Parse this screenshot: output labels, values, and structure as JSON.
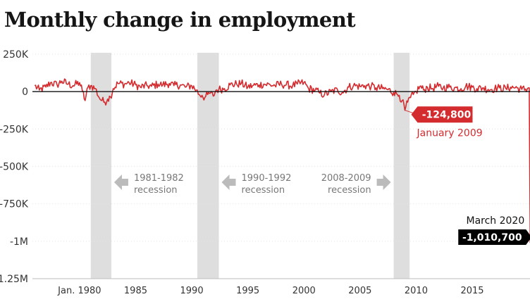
{
  "chart_data": {
    "type": "line",
    "title": "Monthly change in employment",
    "xlabel": "",
    "ylabel": "",
    "x_range": [
      "1976-01",
      "2020-04"
    ],
    "ylim": [
      -1250000,
      250000
    ],
    "yticks": [
      250000,
      0,
      -250000,
      -500000,
      -750000,
      -1000000,
      -1250000
    ],
    "ytick_labels": [
      "250K",
      "0",
      "-250K",
      "-500K",
      "-750K",
      "-1M",
      "-1.25M"
    ],
    "xticks": [
      {
        "x": "1980-01",
        "label": "Jan. 1980"
      },
      {
        "x": "1985-01",
        "label": "1985"
      },
      {
        "x": "1990-01",
        "label": "1990"
      },
      {
        "x": "1995-01",
        "label": "1995"
      },
      {
        "x": "2000-01",
        "label": "2000"
      },
      {
        "x": "2005-01",
        "label": "2005"
      },
      {
        "x": "2010-01",
        "label": "2010"
      },
      {
        "x": "2015-01",
        "label": "2015"
      }
    ],
    "recessions": [
      {
        "start": "1981-01",
        "end": "1982-11",
        "label": [
          "1981-1982",
          "recession"
        ],
        "arrow": "left"
      },
      {
        "start": "1990-07",
        "end": "1992-06",
        "label": [
          "1990-1992",
          "recession"
        ],
        "arrow": "left"
      },
      {
        "start": "2008-01",
        "end": "2009-06",
        "label": [
          "2008-2009",
          "recession"
        ],
        "arrow": "right"
      }
    ],
    "series": [
      {
        "color": "#d42b2f",
        "points": [
          [
            "1976-01",
            40000
          ],
          [
            "1976-06",
            10000
          ],
          [
            "1977-01",
            30000
          ],
          [
            "1977-06",
            60000
          ],
          [
            "1978-01",
            45000
          ],
          [
            "1978-06",
            70000
          ],
          [
            "1979-01",
            50000
          ],
          [
            "1979-06",
            40000
          ],
          [
            "1980-01",
            60000
          ],
          [
            "1980-04",
            5000
          ],
          [
            "1980-07",
            -60000
          ],
          [
            "1980-10",
            30000
          ],
          [
            "1981-01",
            40000
          ],
          [
            "1981-06",
            20000
          ],
          [
            "1981-10",
            -40000
          ],
          [
            "1982-01",
            -60000
          ],
          [
            "1982-04",
            -70000
          ],
          [
            "1982-07",
            -50000
          ],
          [
            "1982-10",
            -35000
          ],
          [
            "1983-01",
            20000
          ],
          [
            "1983-06",
            55000
          ],
          [
            "1984-01",
            50000
          ],
          [
            "1984-06",
            60000
          ],
          [
            "1985-01",
            45000
          ],
          [
            "1985-06",
            30000
          ],
          [
            "1986-01",
            40000
          ],
          [
            "1986-06",
            35000
          ],
          [
            "1987-01",
            50000
          ],
          [
            "1987-06",
            45000
          ],
          [
            "1988-01",
            55000
          ],
          [
            "1988-06",
            40000
          ],
          [
            "1989-01",
            45000
          ],
          [
            "1989-06",
            30000
          ],
          [
            "1990-01",
            40000
          ],
          [
            "1990-06",
            10000
          ],
          [
            "1990-09",
            -20000
          ],
          [
            "1990-12",
            -25000
          ],
          [
            "1991-03",
            -40000
          ],
          [
            "1991-06",
            -20000
          ],
          [
            "1991-09",
            -10000
          ],
          [
            "1991-12",
            -30000
          ],
          [
            "1992-03",
            10000
          ],
          [
            "1992-06",
            15000
          ],
          [
            "1992-12",
            20000
          ],
          [
            "1993-06",
            45000
          ],
          [
            "1994-01",
            50000
          ],
          [
            "1994-06",
            55000
          ],
          [
            "1995-01",
            30000
          ],
          [
            "1995-06",
            40000
          ],
          [
            "1996-01",
            45000
          ],
          [
            "1996-06",
            50000
          ],
          [
            "1997-01",
            45000
          ],
          [
            "1997-06",
            40000
          ],
          [
            "1998-01",
            50000
          ],
          [
            "1998-06",
            45000
          ],
          [
            "1999-01",
            40000
          ],
          [
            "1999-06",
            50000
          ],
          [
            "2000-01",
            60000
          ],
          [
            "2000-06",
            20000
          ],
          [
            "2001-01",
            10000
          ],
          [
            "2001-06",
            -10000
          ],
          [
            "2001-11",
            -20000
          ],
          [
            "2002-06",
            0
          ],
          [
            "2003-01",
            10000
          ],
          [
            "2003-06",
            -5000
          ],
          [
            "2004-01",
            30000
          ],
          [
            "2004-06",
            40000
          ],
          [
            "2005-01",
            35000
          ],
          [
            "2005-06",
            40000
          ],
          [
            "2006-01",
            35000
          ],
          [
            "2006-06",
            25000
          ],
          [
            "2007-01",
            20000
          ],
          [
            "2007-06",
            15000
          ],
          [
            "2008-01",
            -5000
          ],
          [
            "2008-04",
            -15000
          ],
          [
            "2008-07",
            -25000
          ],
          [
            "2008-10",
            -60000
          ],
          [
            "2009-01",
            -124800
          ],
          [
            "2009-04",
            -70000
          ],
          [
            "2009-07",
            -40000
          ],
          [
            "2009-10",
            -20000
          ],
          [
            "2010-01",
            0
          ],
          [
            "2010-05",
            35000
          ],
          [
            "2010-09",
            10000
          ],
          [
            "2011-01",
            30000
          ],
          [
            "2011-06",
            20000
          ],
          [
            "2012-01",
            35000
          ],
          [
            "2012-06",
            25000
          ],
          [
            "2013-01",
            30000
          ],
          [
            "2013-06",
            25000
          ],
          [
            "2014-01",
            20000
          ],
          [
            "2014-06",
            35000
          ],
          [
            "2015-01",
            30000
          ],
          [
            "2015-06",
            20000
          ],
          [
            "2016-01",
            25000
          ],
          [
            "2016-06",
            15000
          ],
          [
            "2017-01",
            20000
          ],
          [
            "2017-06",
            25000
          ],
          [
            "2018-01",
            20000
          ],
          [
            "2018-06",
            30000
          ],
          [
            "2019-01",
            25000
          ],
          [
            "2019-06",
            15000
          ],
          [
            "2019-12",
            20000
          ],
          [
            "2020-02",
            25000
          ],
          [
            "2020-03",
            -1010700
          ]
        ]
      }
    ],
    "annotations": [
      {
        "id": "jan2009",
        "x": "2009-01",
        "y": -124800,
        "value": "-124,800",
        "label": "January 2009",
        "color": "#d42b2f",
        "badge": "right"
      },
      {
        "id": "mar2020",
        "x": "2020-03",
        "y": -1010700,
        "value": "-1,010,700",
        "label": "March 2020",
        "color": "#000000",
        "badge": "left"
      }
    ],
    "grid": "horizontal",
    "legend": "none"
  }
}
